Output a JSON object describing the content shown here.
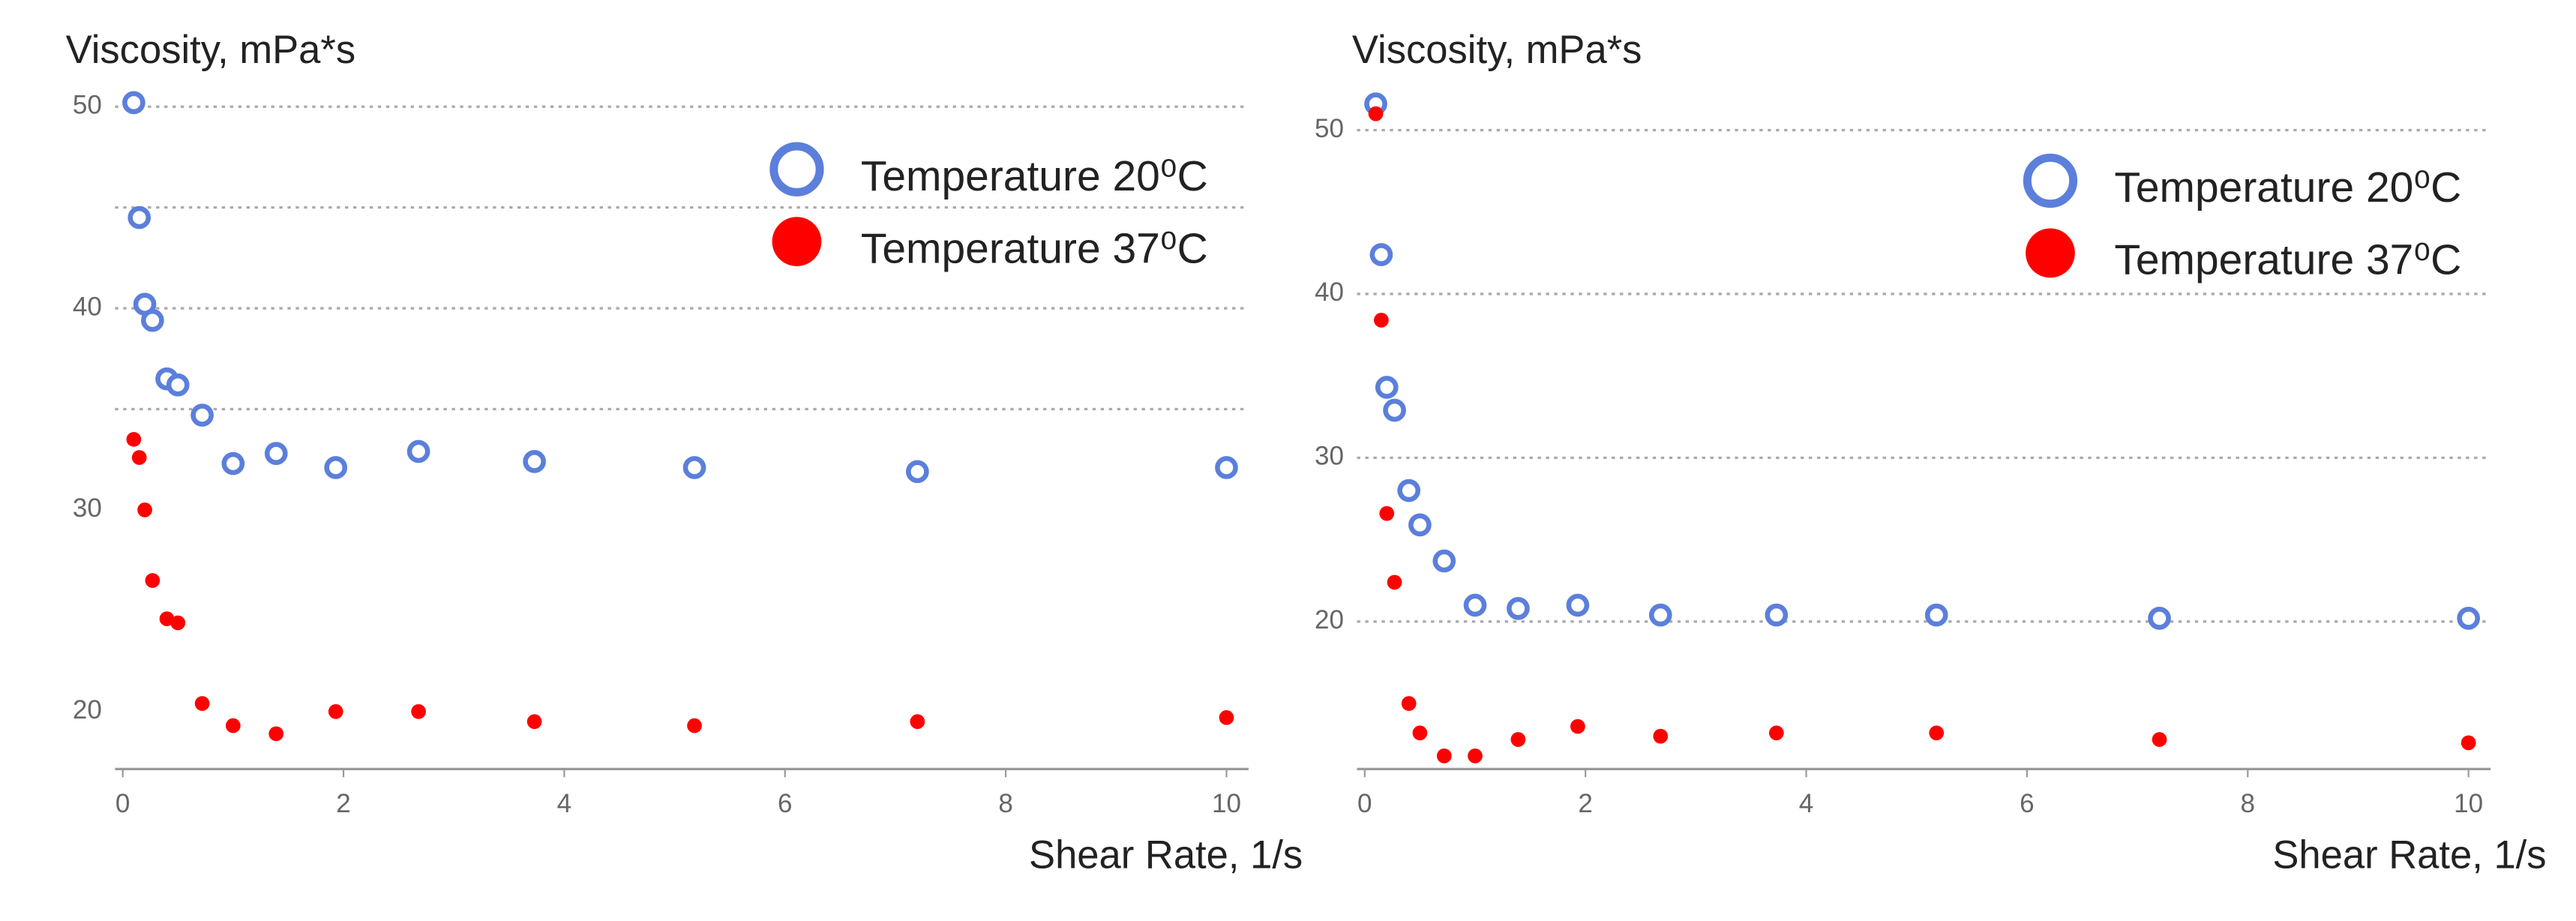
{
  "chart_data": [
    {
      "type": "scatter",
      "title": "Viscosity, mPa*s",
      "x_label": "Shear Rate, 1/s",
      "x": [
        0.1,
        0.15,
        0.2,
        0.27,
        0.4,
        0.5,
        0.72,
        1,
        1.39,
        1.93,
        2.68,
        3.73,
        5.18,
        7.2,
        10
      ],
      "series": [
        {
          "name": "Temperature 20⁰C",
          "color": "#5b7fdb",
          "marker": "open",
          "values": [
            50.2,
            44.5,
            40.2,
            39.4,
            36.5,
            36.2,
            34.7,
            32.3,
            32.8,
            32.1,
            32.9,
            32.4,
            32.1,
            31.9,
            32.1
          ]
        },
        {
          "name": "Temperature 37⁰C",
          "color": "#ff0000",
          "marker": "filled",
          "values": [
            33.5,
            32.6,
            30.0,
            26.5,
            24.6,
            24.4,
            20.4,
            19.3,
            18.9,
            20.0,
            20.0,
            19.5,
            19.3,
            19.5,
            19.7
          ]
        }
      ],
      "xlim": [
        -0.07,
        10.2
      ],
      "ylim": [
        17.15,
        52.3
      ],
      "xticks": [
        0,
        2,
        4,
        6,
        8,
        10
      ],
      "yticks": [
        20,
        30,
        40,
        50
      ],
      "grid_values": [
        35,
        40,
        45,
        50
      ]
    },
    {
      "type": "scatter",
      "title": "Viscosity, mPa*s",
      "x_label": "Shear Rate, 1/s",
      "x": [
        0.1,
        0.15,
        0.2,
        0.27,
        0.4,
        0.5,
        0.72,
        1,
        1.39,
        1.93,
        2.68,
        3.73,
        5.18,
        7.2,
        10
      ],
      "series": [
        {
          "name": "Temperature 20⁰C",
          "color": "#5b7fdb",
          "marker": "open",
          "values": [
            51.6,
            42.4,
            34.3,
            32.9,
            28.0,
            25.9,
            23.7,
            21.0,
            20.8,
            21.0,
            20.4,
            20.4,
            20.4,
            20.2,
            20.2
          ]
        },
        {
          "name": "Temperature 37⁰C",
          "color": "#ff0000",
          "marker": "filled",
          "values": [
            51.0,
            38.4,
            26.6,
            22.4,
            15.0,
            13.2,
            11.8,
            11.8,
            12.8,
            13.6,
            13.0,
            13.2,
            13.2,
            12.8,
            12.6
          ]
        }
      ],
      "xlim": [
        -0.07,
        10.2
      ],
      "ylim": [
        11.0,
        53.5
      ],
      "xticks": [
        0,
        2,
        4,
        6,
        8,
        10
      ],
      "yticks": [
        20,
        30,
        40,
        50
      ],
      "grid_values": [
        20,
        30,
        40,
        50
      ]
    }
  ]
}
